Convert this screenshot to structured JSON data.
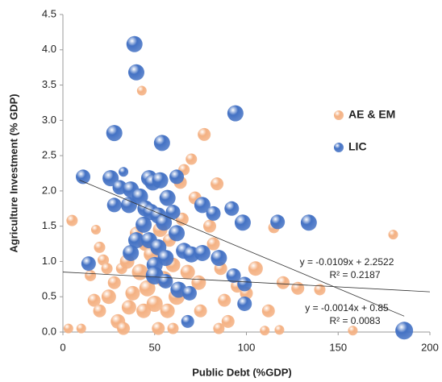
{
  "chart_data": {
    "type": "bubble",
    "x_label": "Public Debt  (%GDP)",
    "y_label": "Agriculture Investment  (% GDP)",
    "xlim": [
      0,
      200
    ],
    "xticks": [
      0,
      50,
      100,
      150,
      200
    ],
    "ylim": [
      0,
      4.5
    ],
    "yticks": [
      {
        "value": 0,
        "label": "0.0"
      },
      {
        "value": 0.5,
        "label": "0.5"
      },
      {
        "value": 1,
        "label": "1.0"
      },
      {
        "value": 1.5,
        "label": "1.5"
      },
      {
        "value": 2,
        "label": "2.0"
      },
      {
        "value": 2.5,
        "label": "2.5"
      },
      {
        "value": 3,
        "label": "3.0"
      },
      {
        "value": 3.5,
        "label": "3.5"
      },
      {
        "value": 4,
        "label": "4.0"
      },
      4.5
    ],
    "series": [
      {
        "name": "AE & EM",
        "color": "#f4b183",
        "x": [
          5,
          3,
          18,
          20,
          22,
          15,
          17,
          20,
          25,
          28,
          30,
          32,
          35,
          38,
          40,
          42,
          44,
          45,
          43,
          46,
          48,
          50,
          52,
          55,
          57,
          58,
          60,
          62,
          64,
          66,
          68,
          70,
          72,
          74,
          75,
          77,
          80,
          82,
          84,
          86,
          88,
          90,
          95,
          100,
          105,
          112,
          115,
          120,
          128,
          140,
          158,
          180,
          10,
          33,
          60,
          85,
          110,
          118,
          24,
          36,
          65,
          53
        ],
        "values": [
          1.58,
          0.05,
          1.45,
          1.2,
          1.02,
          0.8,
          0.45,
          0.3,
          0.5,
          0.7,
          0.15,
          0.9,
          1.0,
          0.55,
          1.4,
          0.85,
          0.3,
          1.25,
          3.42,
          0.62,
          1.1,
          0.4,
          0.05,
          0.75,
          0.3,
          1.3,
          0.95,
          0.5,
          2.12,
          2.3,
          0.85,
          2.45,
          1.9,
          0.7,
          0.3,
          2.8,
          1.5,
          1.25,
          2.1,
          0.9,
          0.45,
          0.15,
          0.65,
          0.55,
          0.9,
          0.3,
          1.48,
          0.7,
          0.62,
          0.6,
          0.02,
          1.38,
          0.05,
          0.05,
          0.05,
          0.05,
          0.02,
          0.03,
          0.9,
          0.35,
          1.6,
          1.45
        ],
        "size": [
          7,
          6,
          6,
          7,
          7,
          7,
          8,
          8,
          9,
          8,
          9,
          7,
          9,
          9,
          8,
          10,
          9,
          9,
          6,
          10,
          9,
          10,
          8,
          10,
          9,
          8,
          9,
          10,
          8,
          7,
          9,
          7,
          8,
          9,
          8,
          8,
          8,
          8,
          8,
          8,
          8,
          8,
          8,
          8,
          9,
          8,
          7,
          8,
          8,
          7,
          6,
          6,
          6,
          8,
          7,
          7,
          6,
          6,
          7,
          9,
          8,
          9
        ]
      },
      {
        "name": "LIC",
        "color": "#4472c4",
        "x": [
          39,
          40,
          28,
          94,
          54,
          11,
          26,
          33,
          31,
          37,
          42,
          47,
          49,
          53,
          57,
          62,
          28,
          36,
          45,
          48,
          52,
          60,
          76,
          82,
          92,
          98,
          117,
          134,
          44,
          40,
          47,
          55,
          62,
          52,
          56,
          66,
          70,
          76,
          85,
          37,
          14,
          50,
          50,
          56,
          63,
          69,
          93,
          99,
          99,
          68,
          186
        ],
        "values": [
          4.08,
          3.68,
          2.82,
          3.1,
          2.68,
          2.2,
          2.18,
          2.27,
          2.05,
          2.02,
          1.92,
          2.18,
          2.12,
          2.15,
          1.9,
          2.2,
          1.8,
          1.8,
          1.75,
          1.7,
          1.65,
          1.7,
          1.8,
          1.68,
          1.75,
          1.55,
          1.56,
          1.55,
          1.52,
          1.3,
          1.3,
          1.55,
          1.4,
          1.2,
          1.05,
          1.15,
          1.1,
          1.12,
          1.05,
          1.12,
          0.97,
          0.95,
          0.8,
          0.72,
          0.6,
          0.55,
          0.8,
          0.68,
          0.4,
          0.15,
          0.02
        ],
        "size": [
          10,
          10,
          10,
          10,
          10,
          9,
          10,
          6,
          9,
          10,
          10,
          10,
          10,
          10,
          10,
          9,
          9,
          10,
          10,
          10,
          10,
          9,
          10,
          9,
          9,
          10,
          9,
          10,
          10,
          10,
          10,
          10,
          10,
          10,
          10,
          10,
          10,
          10,
          10,
          10,
          9,
          10,
          11,
          9,
          10,
          9,
          9,
          9,
          9,
          8,
          11
        ]
      }
    ],
    "trendlines": [
      {
        "slope": -0.0109,
        "intercept": 2.2522,
        "x_range": [
          9,
          186
        ],
        "equation": "y = -0.0109x + 2.2522",
        "r2": "R² = 0.2187"
      },
      {
        "slope": -0.0014,
        "intercept": 0.85,
        "x_range": [
          0,
          200
        ],
        "equation": "y = -0.0014x + 0.85",
        "r2": "R² = 0.0083"
      }
    ]
  }
}
